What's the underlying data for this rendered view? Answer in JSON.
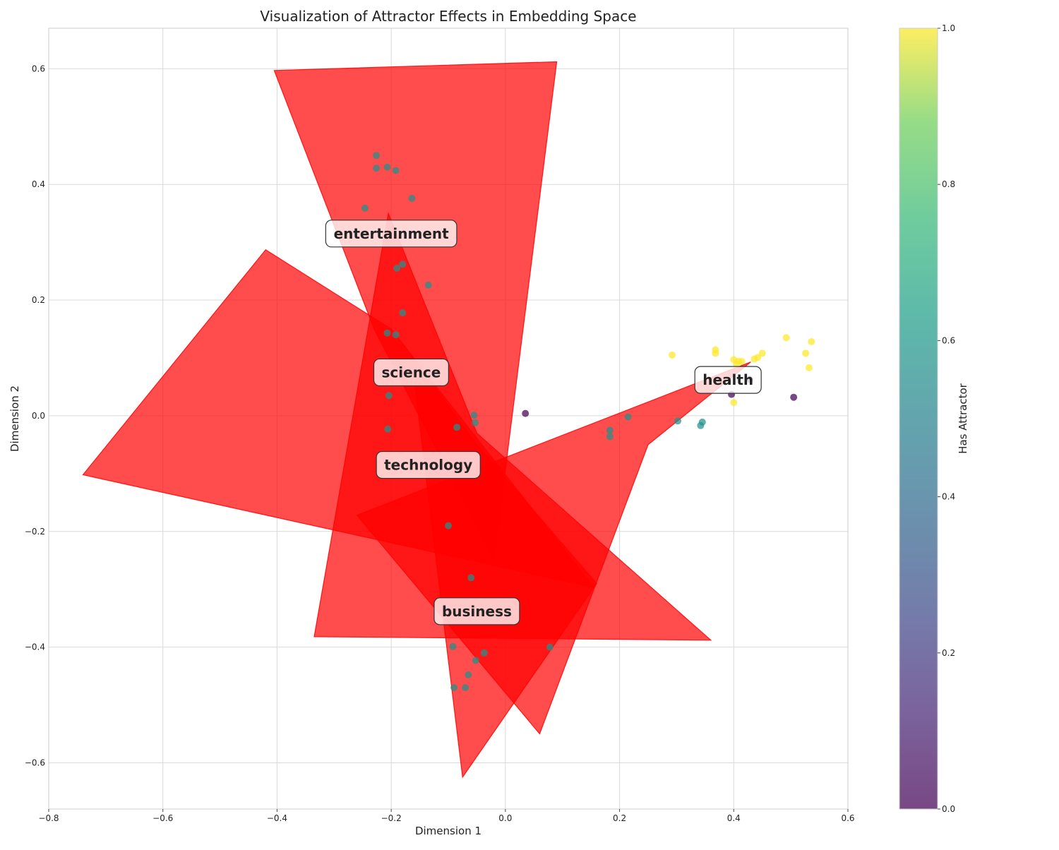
{
  "chart_data": {
    "type": "scatter",
    "title": "Visualization of Attractor Effects in Embedding Space",
    "xlabel": "Dimension 1",
    "ylabel": "Dimension 2",
    "xlim": [
      -0.8,
      0.6
    ],
    "ylim": [
      -0.68,
      0.67
    ],
    "x_ticks": [
      -0.8,
      -0.6,
      -0.4,
      -0.2,
      0.0,
      0.2,
      0.4,
      0.6
    ],
    "y_ticks": [
      -0.6,
      -0.4,
      -0.2,
      0.0,
      0.2,
      0.4,
      0.6
    ],
    "x_tick_labels": [
      "−0.8",
      "−0.6",
      "−0.4",
      "−0.2",
      "0.0",
      "0.2",
      "0.4",
      "0.6"
    ],
    "y_tick_labels": [
      "−0.6",
      "−0.4",
      "−0.2",
      "0.0",
      "0.2",
      "0.4",
      "0.6"
    ],
    "grid": true,
    "colorbar": {
      "label": "Has Attractor",
      "range": [
        0,
        1
      ],
      "ticks": [
        0.0,
        0.2,
        0.4,
        0.6,
        0.8,
        1.0
      ],
      "tick_labels": [
        "0.0",
        "0.2",
        "0.4",
        "0.6",
        "0.8",
        "1.0"
      ],
      "colormap": "viridis"
    },
    "colors": {
      "attractor_region": "#ff0000",
      "has_attractor_1": "#fde725",
      "has_attractor_0": "#440154"
    },
    "cluster_labels": [
      {
        "text": "entertainment",
        "x": -0.2,
        "y": 0.315
      },
      {
        "text": "science",
        "x": -0.165,
        "y": 0.075
      },
      {
        "text": "technology",
        "x": -0.135,
        "y": -0.085
      },
      {
        "text": "health",
        "x": 0.39,
        "y": 0.062
      },
      {
        "text": "business",
        "x": -0.05,
        "y": -0.338
      }
    ],
    "attractor_regions": [
      {
        "name": "entertainment",
        "vertices": [
          [
            -0.405,
            0.597
          ],
          [
            0.09,
            0.612
          ],
          [
            -0.02,
            -0.25
          ],
          [
            -0.23,
            0.15
          ]
        ]
      },
      {
        "name": "science",
        "vertices": [
          [
            -0.42,
            0.287
          ],
          [
            -0.74,
            -0.102
          ],
          [
            0.155,
            -0.297
          ],
          [
            -0.2,
            0.15
          ]
        ]
      },
      {
        "name": "technology",
        "vertices": [
          [
            -0.205,
            0.35
          ],
          [
            -0.335,
            -0.382
          ],
          [
            0.36,
            -0.388
          ],
          [
            -0.05,
            -0.03
          ]
        ]
      },
      {
        "name": "health",
        "vertices": [
          [
            0.43,
            0.093
          ],
          [
            -0.26,
            -0.172
          ],
          [
            0.06,
            -0.55
          ],
          [
            0.25,
            -0.05
          ]
        ]
      },
      {
        "name": "business",
        "vertices": [
          [
            -0.165,
            0.105
          ],
          [
            -0.075,
            -0.625
          ],
          [
            0.16,
            -0.29
          ],
          [
            -0.05,
            -0.05
          ]
        ]
      }
    ],
    "series": [
      {
        "has_attractor": 1,
        "x": [
          0.292,
          0.368,
          0.368,
          0.4,
          0.408,
          0.414,
          0.436,
          0.442,
          0.45,
          0.492,
          0.526,
          0.532,
          0.536,
          0.4,
          0.405
        ],
        "y": [
          0.105,
          0.114,
          0.108,
          0.097,
          0.094,
          0.094,
          0.098,
          0.101,
          0.108,
          0.135,
          0.108,
          0.083,
          0.128,
          0.023,
          0.09
        ]
      },
      {
        "has_attractor": 0,
        "x": [
          0.035,
          0.396,
          0.428,
          0.505
        ],
        "y": [
          0.004,
          0.037,
          0.063,
          0.032
        ]
      },
      {
        "has_attractor": 0.5,
        "x": [
          -0.226,
          -0.226,
          -0.207,
          -0.192,
          -0.164,
          -0.246,
          -0.135,
          -0.18,
          -0.207,
          -0.204,
          -0.206,
          -0.053,
          -0.055,
          0.183,
          0.183,
          0.215,
          0.302,
          0.342,
          0.345,
          -0.092,
          -0.037,
          -0.052,
          -0.065,
          -0.07,
          -0.09,
          0.078,
          -0.18,
          -0.19,
          -0.192,
          -0.1,
          -0.06,
          -0.085
        ],
        "y": [
          0.45,
          0.428,
          0.43,
          0.424,
          0.376,
          0.359,
          0.226,
          0.178,
          0.143,
          0.035,
          -0.023,
          -0.012,
          0.001,
          -0.025,
          -0.036,
          -0.002,
          -0.009,
          -0.017,
          -0.011,
          -0.399,
          -0.41,
          -0.423,
          -0.448,
          -0.47,
          -0.47,
          -0.4,
          0.262,
          0.255,
          0.14,
          -0.19,
          -0.28,
          -0.02
        ]
      }
    ]
  }
}
